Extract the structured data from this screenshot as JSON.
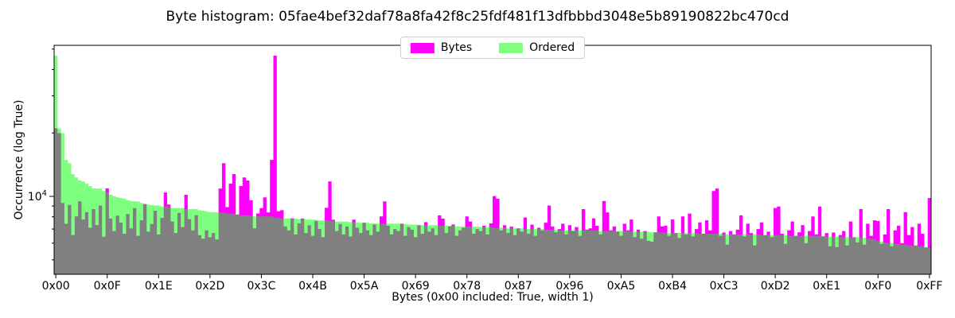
{
  "chart_data": {
    "type": "bar",
    "title": "Byte histogram: 05fae4bef32daf78a8fa42f8c25fdf481f13dfbbbd3048e5b89190822bc470cd",
    "xlabel": "Bytes (0x00 included: True, width 1)",
    "ylabel": "Occurrence (log True)",
    "yscale": "log",
    "ylim": [
      4270,
      52100
    ],
    "n_bins": 256,
    "grid": false,
    "legend_position": "upper center",
    "x_tick_values": [
      0,
      15,
      30,
      45,
      60,
      75,
      90,
      105,
      120,
      135,
      150,
      165,
      180,
      195,
      210,
      225,
      240,
      255
    ],
    "x_tick_labels": [
      "0x00",
      "0x0F",
      "0x1E",
      "0x2D",
      "0x3C",
      "0x4B",
      "0x5A",
      "0x69",
      "0x78",
      "0x87",
      "0x96",
      "0xA5",
      "0xB4",
      "0xC3",
      "0xD2",
      "0xE1",
      "0xF0",
      "0xFF"
    ],
    "y_axis": {
      "major_tick_value": 10000,
      "major_label_base": "10",
      "major_label_exp": "4",
      "minor_tick_values": [
        5000,
        6000,
        7000,
        8000,
        9000,
        20000,
        30000,
        40000,
        50000
      ]
    },
    "legend": [
      {
        "label": "Bytes",
        "color": "#ff00ff"
      },
      {
        "label": "Ordered",
        "color": "#80ff80"
      }
    ],
    "series": [
      {
        "name": "Bytes",
        "color": "#ff00ff",
        "opacity": 1,
        "values": [
          21023,
          19958,
          9310,
          7420,
          9100,
          6560,
          8030,
          9470,
          7770,
          8420,
          7100,
          8700,
          7310,
          9050,
          6440,
          10905,
          7850,
          6850,
          8100,
          7500,
          6650,
          8250,
          7050,
          8800,
          6500,
          7700,
          9200,
          6800,
          7400,
          8550,
          6600,
          7900,
          10430,
          9150,
          7600,
          6700,
          8350,
          7150,
          10180,
          7800,
          6900,
          8150,
          6550,
          6300,
          6900,
          6400,
          6700,
          6250,
          10900,
          14367,
          8900,
          11489,
          12752,
          8200,
          11202,
          12296,
          11900,
          9580,
          7050,
          8300,
          8800,
          9900,
          8400,
          14903,
          46541,
          8500,
          8600,
          7200,
          6900,
          7870,
          6600,
          7450,
          7840,
          6700,
          7300,
          6500,
          7650,
          7000,
          6400,
          8830,
          11771,
          7750,
          6850,
          7400,
          6600,
          7200,
          6450,
          7760,
          7100,
          6700,
          7500,
          6900,
          6550,
          7350,
          6800,
          8030,
          9465,
          7250,
          6600,
          7000,
          6850,
          7420,
          6500,
          7150,
          6950,
          6400,
          7300,
          6650,
          7550,
          6800,
          7050,
          6550,
          8130,
          7840,
          6700,
          7200,
          7360,
          6500,
          6900,
          7100,
          8030,
          7600,
          6650,
          7000,
          6850,
          7250,
          6600,
          7450,
          10030,
          9742,
          6900,
          7300,
          6700,
          7180,
          6550,
          7050,
          6800,
          7940,
          6650,
          7350,
          6500,
          7100,
          6900,
          7500,
          9054,
          7200,
          6750,
          7000,
          7420,
          6600,
          7300,
          6850,
          7150,
          6500,
          8700,
          6950,
          7050,
          7870,
          7250,
          6600,
          9500,
          8400,
          6900,
          7200,
          6800,
          6500,
          7420,
          6900,
          7770,
          6400,
          6950,
          6300,
          6850,
          6150,
          6100,
          6750,
          8030,
          7210,
          7260,
          6500,
          7770,
          6700,
          6350,
          8030,
          6600,
          8290,
          6450,
          7000,
          7530,
          6650,
          7700,
          6900,
          10612,
          10893,
          6500,
          6740,
          5900,
          6850,
          6600,
          6950,
          8130,
          6450,
          7420,
          6700,
          5850,
          7000,
          7530,
          6550,
          6800,
          6400,
          8810,
          8953,
          6650,
          5950,
          6900,
          7600,
          6500,
          6750,
          7310,
          6000,
          6850,
          8030,
          6600,
          8950,
          6450,
          6700,
          5800,
          6740,
          5750,
          6550,
          6850,
          5850,
          7600,
          6400,
          6050,
          8700,
          5900,
          7420,
          6500,
          7700,
          7650,
          5950,
          6600,
          8700,
          5800,
          6900,
          7260,
          6000,
          8420,
          6550,
          7150,
          5850,
          7420,
          6650,
          5720,
          9817
        ]
      },
      {
        "name": "Ordered",
        "color": "#00ff00",
        "opacity": 0.5,
        "transform": "sorted_descending_of_Bytes"
      }
    ],
    "colors": {
      "bytes_bar": "#ff00ff",
      "ordered_overlay_on_white": "#80ff80",
      "overlap_rendered": "#808080",
      "axis": "#000000",
      "legend_border": "#cccccc"
    }
  }
}
